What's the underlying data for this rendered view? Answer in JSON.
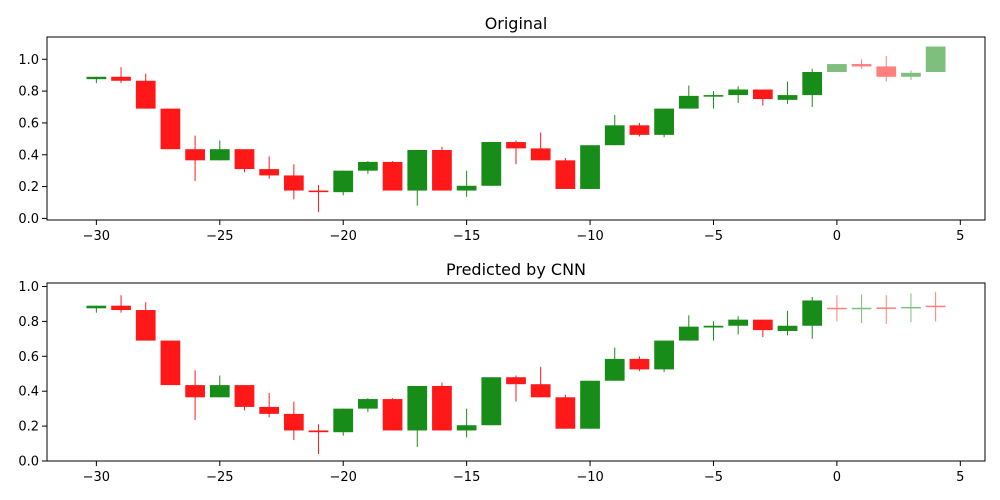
{
  "chart_data": [
    {
      "type": "candlestick",
      "title": "Original",
      "xlabel": "",
      "ylabel": "",
      "xlim": [
        -32,
        6
      ],
      "ylim": [
        -0.01,
        1.14
      ],
      "xticks": [
        -30,
        -25,
        -20,
        -15,
        -10,
        -5,
        0,
        5
      ],
      "yticks": [
        0.0,
        0.2,
        0.4,
        0.6,
        0.8,
        1.0
      ],
      "xtick_labels": [
        "−30",
        "−25",
        "−20",
        "−15",
        "−10",
        "−5",
        "0",
        "5"
      ],
      "ytick_labels": [
        "0.0",
        "0.2",
        "0.4",
        "0.6",
        "0.8",
        "1.0"
      ],
      "up_color": "#008000",
      "down_color": "#ff0000",
      "candles": [
        {
          "x": -30,
          "open": 0.875,
          "high": 0.89,
          "low": 0.85,
          "close": 0.89,
          "faded": false
        },
        {
          "x": -29,
          "open": 0.89,
          "high": 0.95,
          "low": 0.85,
          "close": 0.865,
          "faded": false
        },
        {
          "x": -28,
          "open": 0.865,
          "high": 0.91,
          "low": 0.69,
          "close": 0.69,
          "faded": false
        },
        {
          "x": -27,
          "open": 0.69,
          "high": 0.69,
          "low": 0.435,
          "close": 0.435,
          "faded": false
        },
        {
          "x": -26,
          "open": 0.435,
          "high": 0.52,
          "low": 0.235,
          "close": 0.365,
          "faded": false
        },
        {
          "x": -25,
          "open": 0.365,
          "high": 0.49,
          "low": 0.365,
          "close": 0.435,
          "faded": false
        },
        {
          "x": -24,
          "open": 0.435,
          "high": 0.435,
          "low": 0.29,
          "close": 0.31,
          "faded": false
        },
        {
          "x": -23,
          "open": 0.31,
          "high": 0.39,
          "low": 0.25,
          "close": 0.27,
          "faded": false
        },
        {
          "x": -22,
          "open": 0.27,
          "high": 0.34,
          "low": 0.12,
          "close": 0.175,
          "faded": false
        },
        {
          "x": -21,
          "open": 0.175,
          "high": 0.21,
          "low": 0.04,
          "close": 0.165,
          "faded": false
        },
        {
          "x": -20,
          "open": 0.165,
          "high": 0.3,
          "low": 0.145,
          "close": 0.3,
          "faded": false
        },
        {
          "x": -19,
          "open": 0.3,
          "high": 0.36,
          "low": 0.28,
          "close": 0.355,
          "faded": false
        },
        {
          "x": -18,
          "open": 0.355,
          "high": 0.36,
          "low": 0.175,
          "close": 0.175,
          "faded": false
        },
        {
          "x": -17,
          "open": 0.175,
          "high": 0.43,
          "low": 0.08,
          "close": 0.43,
          "faded": false
        },
        {
          "x": -16,
          "open": 0.43,
          "high": 0.45,
          "low": 0.175,
          "close": 0.175,
          "faded": false
        },
        {
          "x": -15,
          "open": 0.175,
          "high": 0.3,
          "low": 0.135,
          "close": 0.205,
          "faded": false
        },
        {
          "x": -14,
          "open": 0.205,
          "high": 0.48,
          "low": 0.205,
          "close": 0.48,
          "faded": false
        },
        {
          "x": -13,
          "open": 0.48,
          "high": 0.49,
          "low": 0.34,
          "close": 0.44,
          "faded": false
        },
        {
          "x": -12,
          "open": 0.44,
          "high": 0.54,
          "low": 0.365,
          "close": 0.365,
          "faded": false
        },
        {
          "x": -11,
          "open": 0.365,
          "high": 0.38,
          "low": 0.185,
          "close": 0.185,
          "faded": false
        },
        {
          "x": -10,
          "open": 0.185,
          "high": 0.46,
          "low": 0.185,
          "close": 0.46,
          "faded": false
        },
        {
          "x": -9,
          "open": 0.46,
          "high": 0.65,
          "low": 0.46,
          "close": 0.585,
          "faded": false
        },
        {
          "x": -8,
          "open": 0.585,
          "high": 0.6,
          "low": 0.515,
          "close": 0.525,
          "faded": false
        },
        {
          "x": -7,
          "open": 0.525,
          "high": 0.69,
          "low": 0.51,
          "close": 0.69,
          "faded": false
        },
        {
          "x": -6,
          "open": 0.69,
          "high": 0.835,
          "low": 0.69,
          "close": 0.77,
          "faded": false
        },
        {
          "x": -5,
          "open": 0.765,
          "high": 0.8,
          "low": 0.69,
          "close": 0.775,
          "faded": false
        },
        {
          "x": -4,
          "open": 0.775,
          "high": 0.83,
          "low": 0.725,
          "close": 0.81,
          "faded": false
        },
        {
          "x": -3,
          "open": 0.81,
          "high": 0.81,
          "low": 0.71,
          "close": 0.75,
          "faded": false
        },
        {
          "x": -2,
          "open": 0.745,
          "high": 0.86,
          "low": 0.72,
          "close": 0.775,
          "faded": false
        },
        {
          "x": -1,
          "open": 0.775,
          "high": 0.94,
          "low": 0.7,
          "close": 0.92,
          "faded": false
        },
        {
          "x": 0,
          "open": 0.92,
          "high": 0.97,
          "low": 0.92,
          "close": 0.97,
          "faded": true
        },
        {
          "x": 1,
          "open": 0.97,
          "high": 1.0,
          "low": 0.94,
          "close": 0.955,
          "faded": true
        },
        {
          "x": 2,
          "open": 0.955,
          "high": 1.02,
          "low": 0.86,
          "close": 0.89,
          "faded": true
        },
        {
          "x": 3,
          "open": 0.89,
          "high": 0.93,
          "low": 0.87,
          "close": 0.915,
          "faded": true
        },
        {
          "x": 4,
          "open": 0.92,
          "high": 1.08,
          "low": 0.92,
          "close": 1.08,
          "faded": true
        }
      ]
    },
    {
      "type": "candlestick",
      "title": "Predicted by CNN",
      "xlabel": "",
      "ylabel": "",
      "xlim": [
        -32,
        6
      ],
      "ylim": [
        0.0,
        1.02
      ],
      "xticks": [
        -30,
        -25,
        -20,
        -15,
        -10,
        -5,
        0,
        5
      ],
      "yticks": [
        0.0,
        0.2,
        0.4,
        0.6,
        0.8,
        1.0
      ],
      "xtick_labels": [
        "−30",
        "−25",
        "−20",
        "−15",
        "−10",
        "−5",
        "0",
        "5"
      ],
      "ytick_labels": [
        "0.0",
        "0.2",
        "0.4",
        "0.6",
        "0.8",
        "1.0"
      ],
      "up_color": "#008000",
      "down_color": "#ff0000",
      "candles": [
        {
          "x": -30,
          "open": 0.875,
          "high": 0.89,
          "low": 0.85,
          "close": 0.89,
          "faded": false
        },
        {
          "x": -29,
          "open": 0.89,
          "high": 0.95,
          "low": 0.85,
          "close": 0.865,
          "faded": false
        },
        {
          "x": -28,
          "open": 0.865,
          "high": 0.91,
          "low": 0.69,
          "close": 0.69,
          "faded": false
        },
        {
          "x": -27,
          "open": 0.69,
          "high": 0.69,
          "low": 0.435,
          "close": 0.435,
          "faded": false
        },
        {
          "x": -26,
          "open": 0.435,
          "high": 0.52,
          "low": 0.235,
          "close": 0.365,
          "faded": false
        },
        {
          "x": -25,
          "open": 0.365,
          "high": 0.49,
          "low": 0.365,
          "close": 0.435,
          "faded": false
        },
        {
          "x": -24,
          "open": 0.435,
          "high": 0.435,
          "low": 0.29,
          "close": 0.31,
          "faded": false
        },
        {
          "x": -23,
          "open": 0.31,
          "high": 0.39,
          "low": 0.25,
          "close": 0.27,
          "faded": false
        },
        {
          "x": -22,
          "open": 0.27,
          "high": 0.34,
          "low": 0.12,
          "close": 0.175,
          "faded": false
        },
        {
          "x": -21,
          "open": 0.175,
          "high": 0.21,
          "low": 0.04,
          "close": 0.165,
          "faded": false
        },
        {
          "x": -20,
          "open": 0.165,
          "high": 0.3,
          "low": 0.145,
          "close": 0.3,
          "faded": false
        },
        {
          "x": -19,
          "open": 0.3,
          "high": 0.36,
          "low": 0.28,
          "close": 0.355,
          "faded": false
        },
        {
          "x": -18,
          "open": 0.355,
          "high": 0.36,
          "low": 0.175,
          "close": 0.175,
          "faded": false
        },
        {
          "x": -17,
          "open": 0.175,
          "high": 0.43,
          "low": 0.08,
          "close": 0.43,
          "faded": false
        },
        {
          "x": -16,
          "open": 0.43,
          "high": 0.45,
          "low": 0.175,
          "close": 0.175,
          "faded": false
        },
        {
          "x": -15,
          "open": 0.175,
          "high": 0.3,
          "low": 0.135,
          "close": 0.205,
          "faded": false
        },
        {
          "x": -14,
          "open": 0.205,
          "high": 0.48,
          "low": 0.205,
          "close": 0.48,
          "faded": false
        },
        {
          "x": -13,
          "open": 0.48,
          "high": 0.49,
          "low": 0.34,
          "close": 0.44,
          "faded": false
        },
        {
          "x": -12,
          "open": 0.44,
          "high": 0.54,
          "low": 0.365,
          "close": 0.365,
          "faded": false
        },
        {
          "x": -11,
          "open": 0.365,
          "high": 0.38,
          "low": 0.185,
          "close": 0.185,
          "faded": false
        },
        {
          "x": -10,
          "open": 0.185,
          "high": 0.46,
          "low": 0.185,
          "close": 0.46,
          "faded": false
        },
        {
          "x": -9,
          "open": 0.46,
          "high": 0.65,
          "low": 0.46,
          "close": 0.585,
          "faded": false
        },
        {
          "x": -8,
          "open": 0.585,
          "high": 0.6,
          "low": 0.515,
          "close": 0.525,
          "faded": false
        },
        {
          "x": -7,
          "open": 0.525,
          "high": 0.69,
          "low": 0.51,
          "close": 0.69,
          "faded": false
        },
        {
          "x": -6,
          "open": 0.69,
          "high": 0.835,
          "low": 0.69,
          "close": 0.77,
          "faded": false
        },
        {
          "x": -5,
          "open": 0.765,
          "high": 0.8,
          "low": 0.69,
          "close": 0.775,
          "faded": false
        },
        {
          "x": -4,
          "open": 0.775,
          "high": 0.83,
          "low": 0.725,
          "close": 0.81,
          "faded": false
        },
        {
          "x": -3,
          "open": 0.81,
          "high": 0.81,
          "low": 0.71,
          "close": 0.75,
          "faded": false
        },
        {
          "x": -2,
          "open": 0.745,
          "high": 0.86,
          "low": 0.72,
          "close": 0.775,
          "faded": false
        },
        {
          "x": -1,
          "open": 0.775,
          "high": 0.94,
          "low": 0.7,
          "close": 0.92,
          "faded": false
        },
        {
          "x": 0,
          "open": 0.878,
          "high": 0.95,
          "low": 0.8,
          "close": 0.873,
          "faded": true
        },
        {
          "x": 1,
          "open": 0.875,
          "high": 0.955,
          "low": 0.79,
          "close": 0.878,
          "faded": true
        },
        {
          "x": 2,
          "open": 0.88,
          "high": 0.95,
          "low": 0.785,
          "close": 0.875,
          "faded": true
        },
        {
          "x": 3,
          "open": 0.878,
          "high": 0.96,
          "low": 0.795,
          "close": 0.883,
          "faded": true
        },
        {
          "x": 4,
          "open": 0.89,
          "high": 0.97,
          "low": 0.8,
          "close": 0.885,
          "faded": true
        }
      ]
    }
  ]
}
